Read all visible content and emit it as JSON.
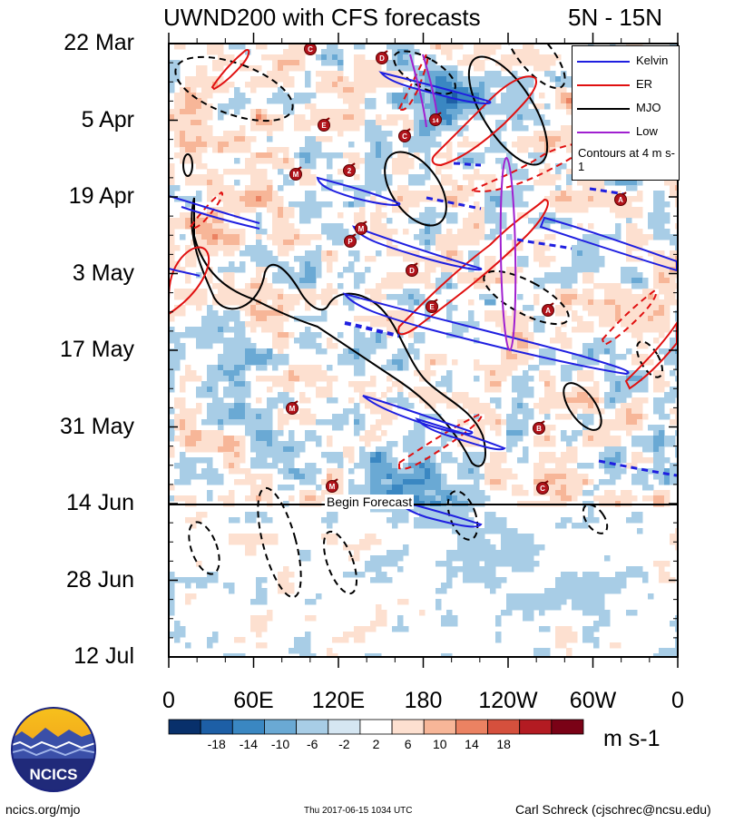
{
  "title": "UWND200 with CFS forecasts",
  "latitude_band": "5N - 15N",
  "legend": {
    "entries": [
      {
        "label": "Kelvin",
        "color": "#1f1fe0"
      },
      {
        "label": "ER",
        "color": "#e01010"
      },
      {
        "label": "MJO",
        "color": "#000000"
      },
      {
        "label": "Low",
        "color": "#a020d0"
      }
    ],
    "contour_note": "Contours at 4 m s-1"
  },
  "forecast_label": "Begin Forecast",
  "colorbar": {
    "unit": "m s-1",
    "tick_labels": [
      "-18",
      "-14",
      "-10",
      "-6",
      "-2",
      "2",
      "6",
      "10",
      "14",
      "18"
    ],
    "colors": [
      "#08306b",
      "#1d5fa6",
      "#3a87c2",
      "#6aa9d4",
      "#a8cde6",
      "#d5e6f2",
      "#ffffff",
      "#fde0d0",
      "#f7b698",
      "#eb8262",
      "#d5503d",
      "#b31b22",
      "#7a0216"
    ]
  },
  "chart_data": {
    "type": "heatmap",
    "title": "UWND200 with CFS forecasts",
    "subtitle": "5N - 15N",
    "x_tick_labels": [
      "0",
      "60E",
      "120E",
      "180",
      "120W",
      "60W",
      "0"
    ],
    "y_tick_labels": [
      "22 Mar",
      "5 Apr",
      "19 Apr",
      "3 May",
      "17 May",
      "31 May",
      "14 Jun",
      "28 Jun",
      "12 Jul"
    ],
    "xlim": [
      "0",
      "0"
    ],
    "ylim": [
      "22 Mar",
      "12 Jul"
    ],
    "y_reversed": true,
    "forecast_start": "14 Jun",
    "storm_markers": [
      "C",
      "D",
      "E",
      "C",
      "14",
      "M",
      "2",
      "M",
      "P",
      "D",
      "E",
      "A",
      "M",
      "B",
      "M",
      "C",
      "A"
    ]
  },
  "footer": {
    "site": "ncics.org/mjo",
    "timestamp": "Thu 2017-06-15 1034 UTC",
    "author": "Carl Schreck (cjschrec@ncsu.edu)",
    "logo_text": "NCICS"
  }
}
